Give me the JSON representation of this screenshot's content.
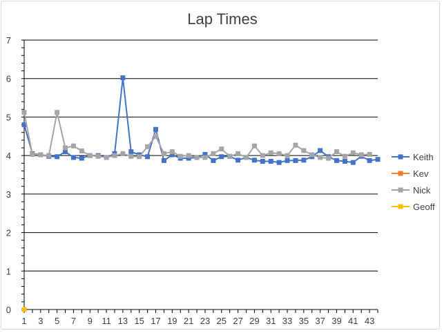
{
  "chart_data": {
    "type": "line",
    "title": "Lap Times",
    "xlabel": "",
    "ylabel": "",
    "ylim": [
      0,
      7
    ],
    "yticks": [
      0,
      1,
      2,
      3,
      4,
      5,
      6,
      7
    ],
    "xlim": [
      1,
      44
    ],
    "xticks": [
      1,
      3,
      5,
      7,
      9,
      11,
      13,
      15,
      17,
      19,
      21,
      23,
      25,
      27,
      29,
      31,
      33,
      35,
      37,
      39,
      41,
      43
    ],
    "grid": "horizontal",
    "legend": "right",
    "series": [
      {
        "name": "Keith",
        "color": "#4472C4",
        "marker": "square",
        "x": [
          1,
          2,
          3,
          4,
          5,
          6,
          7,
          8,
          9,
          10,
          11,
          12,
          13,
          14,
          15,
          16,
          17,
          18,
          19,
          20,
          21,
          22,
          23,
          24,
          25,
          26,
          27,
          28,
          29,
          30,
          31,
          32,
          33,
          34,
          35,
          36,
          37,
          38,
          39,
          40,
          41,
          42,
          43,
          44
        ],
        "values": [
          4.8,
          4.05,
          4.02,
          3.98,
          3.97,
          4.1,
          3.95,
          3.93,
          4.0,
          4.0,
          3.95,
          4.05,
          6.02,
          4.1,
          4.02,
          3.97,
          4.68,
          3.87,
          4.02,
          3.93,
          3.93,
          3.95,
          4.03,
          3.87,
          3.97,
          3.98,
          3.88,
          3.95,
          3.88,
          3.85,
          3.85,
          3.82,
          3.87,
          3.87,
          3.88,
          3.97,
          4.13,
          3.97,
          3.87,
          3.85,
          3.82,
          3.98,
          3.87,
          3.9
        ]
      },
      {
        "name": "Kev",
        "color": "#ED7D31",
        "marker": "square",
        "x": [],
        "values": []
      },
      {
        "name": "Nick",
        "color": "#A5A5A5",
        "marker": "square",
        "x": [
          1,
          2,
          3,
          4,
          5,
          6,
          7,
          8,
          9,
          10,
          11,
          12,
          13,
          14,
          15,
          16,
          17,
          18,
          19,
          20,
          21,
          22,
          23,
          24,
          25,
          26,
          27,
          28,
          29,
          30,
          31,
          32,
          33,
          34,
          35,
          36,
          37,
          38,
          39,
          40,
          41,
          42,
          43
        ],
        "values": [
          5.12,
          4.03,
          4.02,
          4.0,
          5.12,
          4.2,
          4.25,
          4.12,
          4.0,
          3.98,
          3.95,
          4.0,
          4.05,
          3.98,
          3.97,
          4.23,
          4.5,
          4.05,
          4.1,
          3.98,
          4.0,
          3.95,
          3.95,
          4.05,
          4.17,
          3.98,
          4.05,
          3.95,
          4.25,
          4.0,
          4.07,
          4.05,
          4.0,
          4.27,
          4.13,
          4.02,
          3.95,
          3.93,
          4.1,
          3.98,
          4.07,
          4.02,
          4.03
        ]
      },
      {
        "name": "Geoff",
        "color": "#FFC000",
        "marker": "square",
        "x": [
          1
        ],
        "values": [
          0
        ]
      }
    ]
  }
}
